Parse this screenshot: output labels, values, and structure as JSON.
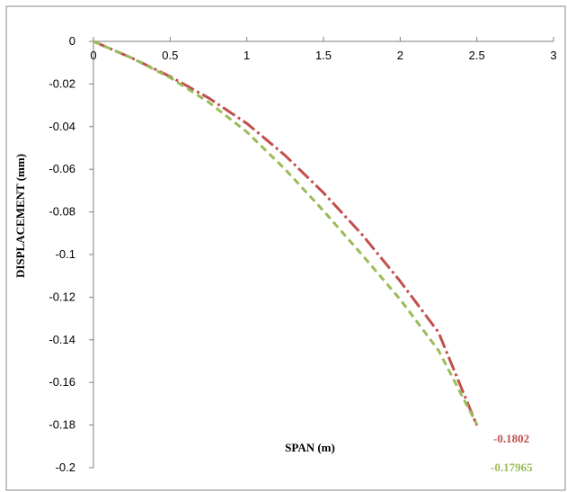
{
  "chart_data": {
    "type": "line",
    "xlabel": "SPAN (m)",
    "ylabel": "DISPLACEMENT (mm)",
    "xlim": [
      0,
      3
    ],
    "ylim": [
      -0.2,
      0
    ],
    "xticks": [
      "0",
      "0.5",
      "1",
      "1.5",
      "2",
      "2.5",
      "3"
    ],
    "yticks": [
      "0",
      "-0.02",
      "-0.04",
      "-0.06",
      "-0.08",
      "-0.1",
      "-0.12",
      "-0.14",
      "-0.16",
      "-0.18",
      "-0.2"
    ],
    "grid": false,
    "series": [
      {
        "color": "#c0504d",
        "style": "dash-dot",
        "x": [
          0,
          0.25,
          0.5,
          0.75,
          1.0,
          1.25,
          1.5,
          1.75,
          2.0,
          2.25,
          2.5
        ],
        "y": [
          0,
          -0.0078,
          -0.0165,
          -0.0265,
          -0.0385,
          -0.0535,
          -0.071,
          -0.0905,
          -0.1125,
          -0.1365,
          -0.1802
        ],
        "end_label": "-0.1802"
      },
      {
        "color": "#9bbb59",
        "style": "dashed",
        "x": [
          0,
          0.25,
          0.5,
          0.75,
          1.0,
          1.25,
          1.5,
          1.75,
          2.0,
          2.25,
          2.5
        ],
        "y": [
          0,
          -0.0078,
          -0.017,
          -0.0285,
          -0.0425,
          -0.06,
          -0.0795,
          -0.1,
          -0.121,
          -0.145,
          -0.17965
        ],
        "end_label": "-0.17965"
      }
    ]
  }
}
